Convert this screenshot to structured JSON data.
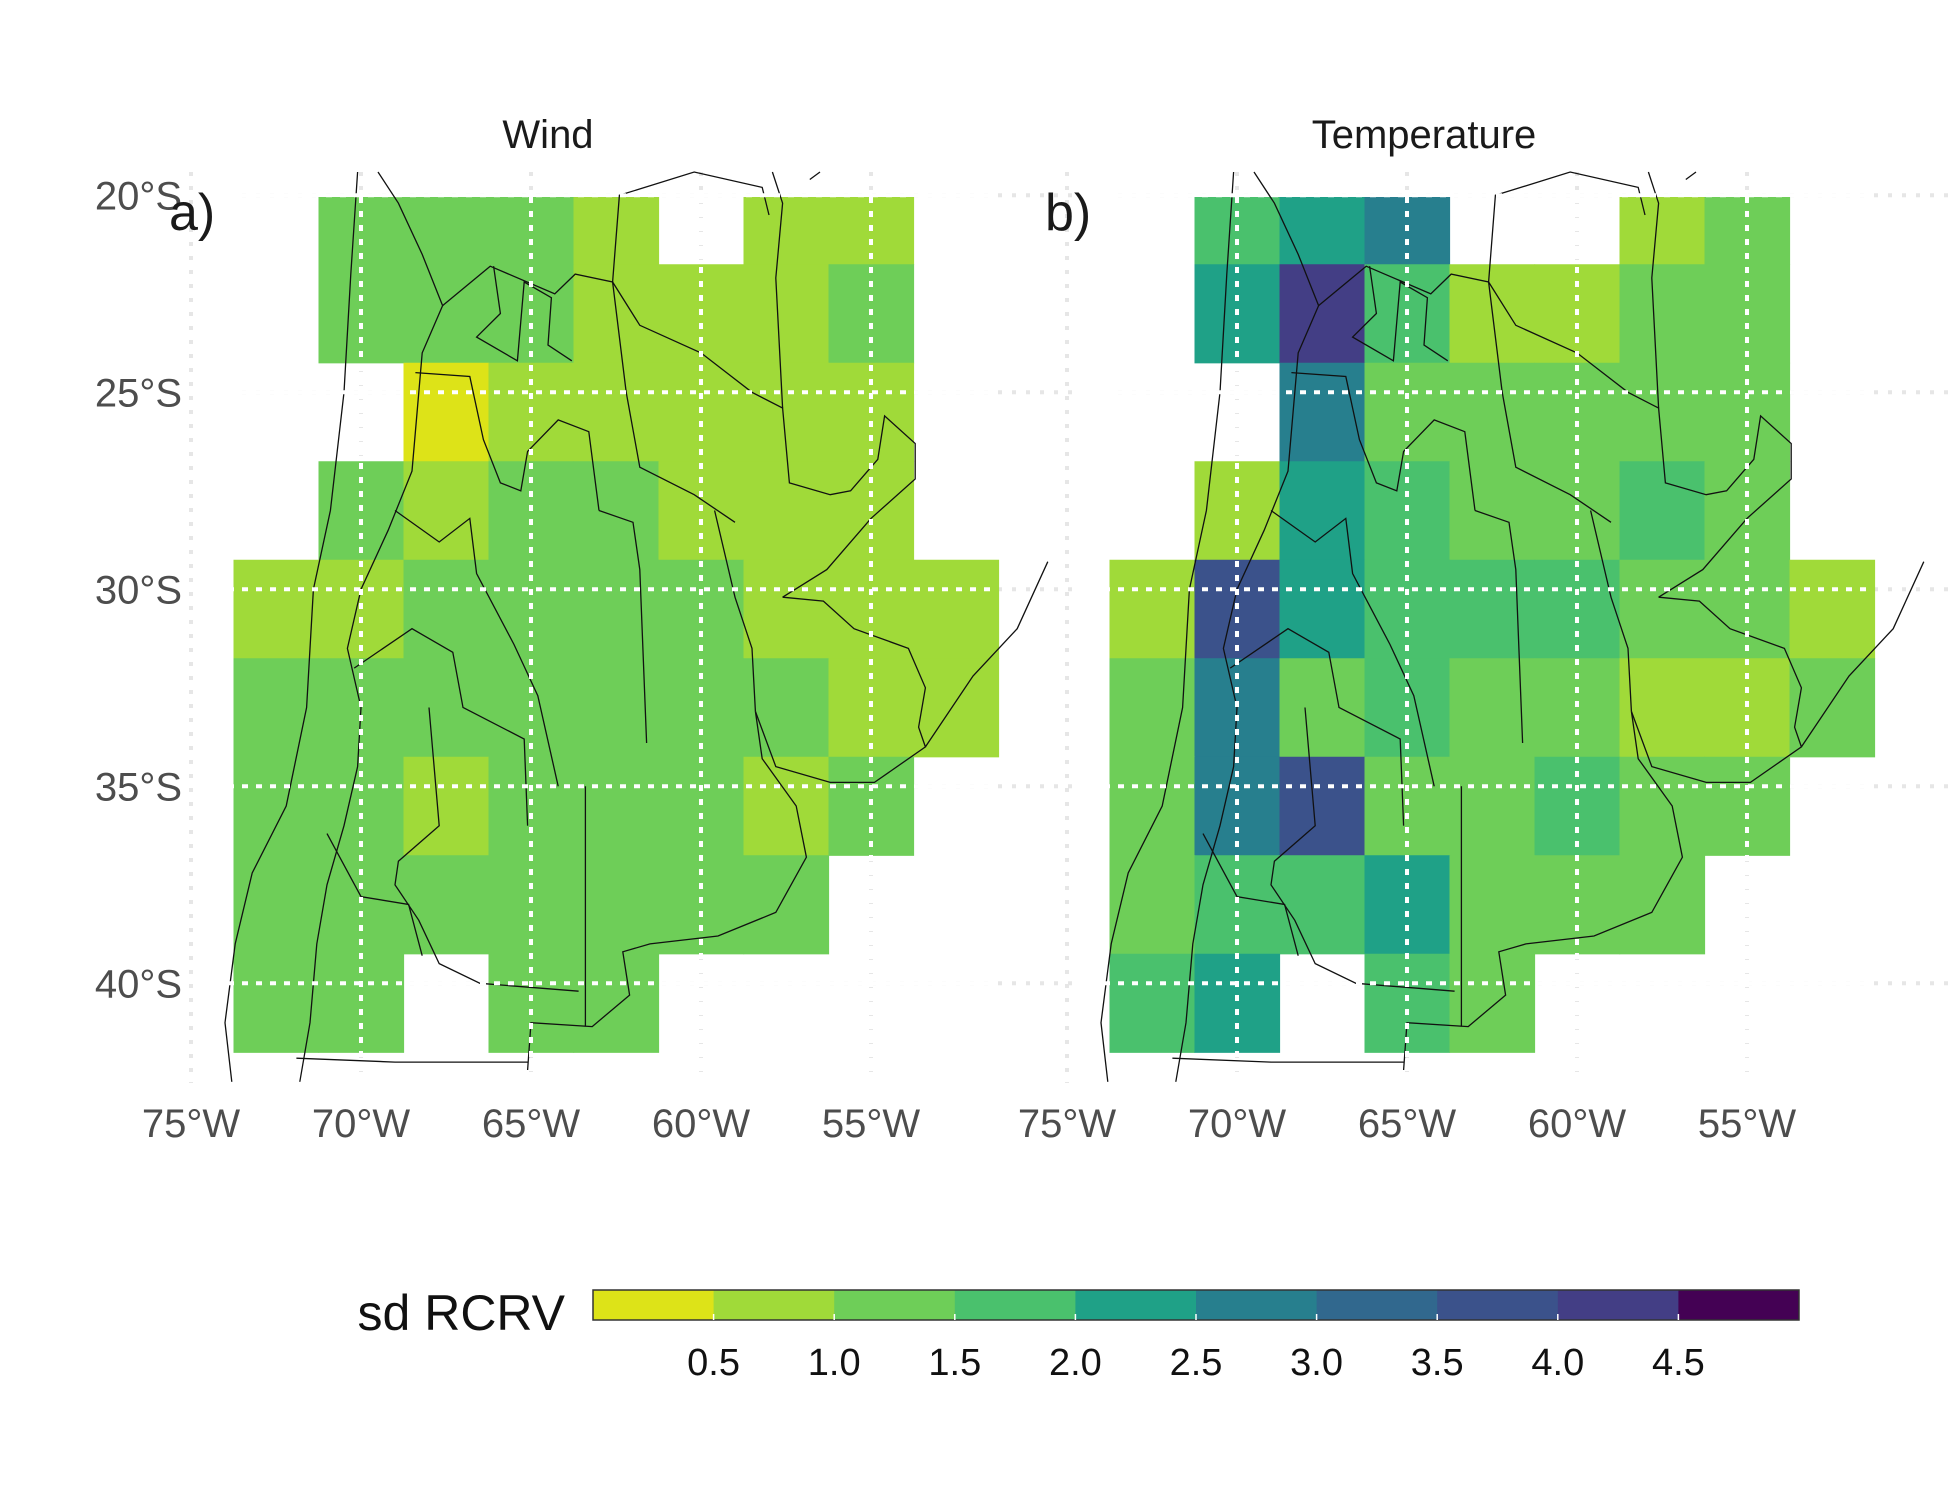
{
  "chart_data": [
    {
      "type": "heatmap",
      "title": "Wind",
      "panel_label": "a)",
      "xlabel": "",
      "ylabel": "",
      "x_ticks": [
        "75°W",
        "70°W",
        "65°W",
        "60°W",
        "55°W"
      ],
      "y_ticks": [
        "20°S",
        "25°S",
        "30°S",
        "35°S",
        "40°S"
      ],
      "x_tick_values": [
        -75,
        -70,
        -65,
        -60,
        -55
      ],
      "y_tick_values": [
        -20,
        -25,
        -30,
        -35,
        -40
      ],
      "xlim": [
        -76,
        -50
      ],
      "ylim": [
        -42.5,
        -19.5
      ],
      "cell_lon_centers": [
        -72.5,
        -70,
        -67.5,
        -65,
        -62.5,
        -60,
        -57.5,
        -55,
        -52.5
      ],
      "cell_lat_centers": [
        -20.5,
        -23,
        -25.5,
        -28,
        -30.5,
        -33,
        -35.5,
        -38,
        -40.5
      ],
      "grid": true,
      "values": [
        [
          null,
          1.1,
          1.2,
          1.0,
          0.9,
          null,
          0.5,
          0.8,
          null
        ],
        [
          null,
          1.3,
          1.1,
          1.0,
          0.7,
          0.7,
          0.8,
          1.0,
          null
        ],
        [
          null,
          null,
          0.4,
          0.9,
          0.8,
          0.8,
          0.8,
          0.9,
          null
        ],
        [
          null,
          1.0,
          0.8,
          1.3,
          1.0,
          0.9,
          0.8,
          0.8,
          null
        ],
        [
          0.7,
          0.9,
          1.0,
          1.0,
          1.1,
          1.0,
          0.9,
          0.8,
          0.5
        ],
        [
          1.0,
          1.0,
          1.1,
          1.0,
          1.1,
          1.1,
          1.0,
          0.7,
          0.8
        ],
        [
          1.0,
          1.0,
          0.9,
          1.0,
          1.1,
          1.1,
          0.9,
          1.0,
          null
        ],
        [
          1.0,
          1.2,
          1.1,
          1.1,
          1.0,
          1.2,
          1.3,
          null,
          null
        ],
        [
          1.4,
          1.2,
          null,
          1.3,
          1.2,
          null,
          null,
          null,
          null
        ]
      ]
    },
    {
      "type": "heatmap",
      "title": "Temperature",
      "panel_label": "b)",
      "xlabel": "",
      "ylabel": "",
      "x_ticks": [
        "75°W",
        "70°W",
        "65°W",
        "60°W",
        "55°W"
      ],
      "y_ticks": [
        "20°S",
        "25°S",
        "30°S",
        "35°S",
        "40°S"
      ],
      "x_tick_values": [
        -75,
        -70,
        -65,
        -60,
        -55
      ],
      "y_tick_values": [
        -20,
        -25,
        -30,
        -35,
        -40
      ],
      "xlim": [
        -76,
        -50
      ],
      "ylim": [
        -42.5,
        -19.5
      ],
      "cell_lon_centers": [
        -72.5,
        -70,
        -67.5,
        -65,
        -62.5,
        -60,
        -57.5,
        -55,
        -52.5
      ],
      "cell_lat_centers": [
        -20.5,
        -23,
        -25.5,
        -28,
        -30.5,
        -33,
        -35.5,
        -38,
        -40.5
      ],
      "grid": true,
      "values": [
        [
          null,
          1.5,
          2.2,
          2.7,
          null,
          null,
          0.8,
          1.1,
          null
        ],
        [
          null,
          2.2,
          4.3,
          1.8,
          0.8,
          0.9,
          1.0,
          1.2,
          null
        ],
        [
          null,
          null,
          2.8,
          1.4,
          1.3,
          1.2,
          1.0,
          1.3,
          null
        ],
        [
          null,
          0.7,
          2.0,
          1.5,
          1.3,
          1.4,
          1.5,
          1.2,
          null
        ],
        [
          0.9,
          3.8,
          2.0,
          1.6,
          1.6,
          1.5,
          1.3,
          1.2,
          0.8
        ],
        [
          1.3,
          2.8,
          1.4,
          1.5,
          1.3,
          1.2,
          0.9,
          0.7,
          1.1
        ],
        [
          1.3,
          2.6,
          3.5,
          1.2,
          1.1,
          1.5,
          1.2,
          1.3,
          null
        ],
        [
          1.0,
          1.6,
          1.9,
          2.1,
          1.4,
          1.3,
          1.4,
          null,
          null
        ],
        [
          1.6,
          2.2,
          null,
          1.5,
          1.4,
          null,
          null,
          null,
          null
        ]
      ]
    }
  ],
  "legend": {
    "title": "sd RCRV",
    "breaks": [
      "0.5",
      "1.0",
      "1.5",
      "2.0",
      "2.5",
      "3.0",
      "3.5",
      "4.0",
      "4.5"
    ],
    "colors": [
      "#dde318",
      "#a0da39",
      "#6ece58",
      "#4ac16d",
      "#1fa187",
      "#277f8e",
      "#31688e",
      "#3b528b",
      "#433e85",
      "#440154"
    ],
    "range": [
      0,
      5
    ]
  }
}
